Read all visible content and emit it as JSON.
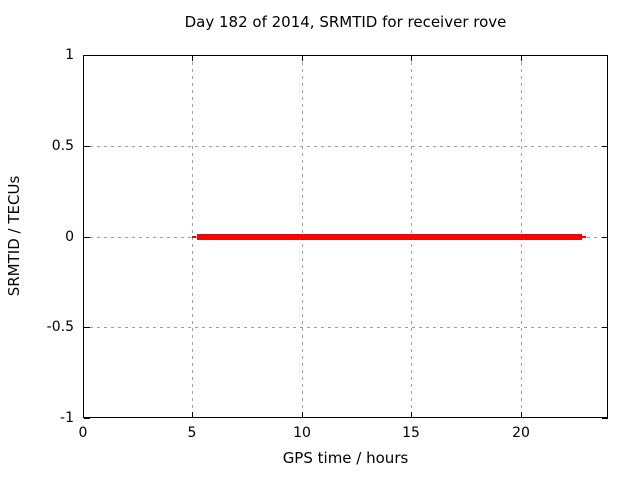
{
  "window": {
    "background": "#ffffff"
  },
  "chart_data": {
    "type": "line",
    "title": "Day 182 of 2014, SRMTID for receiver rove",
    "xlabel": "GPS time / hours",
    "ylabel": "SRMTID / TECUs",
    "xlim": [
      0,
      24
    ],
    "ylim": [
      -1,
      1
    ],
    "xticks": [
      {
        "value": 0,
        "label": "0"
      },
      {
        "value": 5,
        "label": "5"
      },
      {
        "value": 10,
        "label": "10"
      },
      {
        "value": 15,
        "label": "15"
      },
      {
        "value": 20,
        "label": "20"
      }
    ],
    "yticks": [
      {
        "value": 1,
        "label": "1"
      },
      {
        "value": 0.5,
        "label": "0.5"
      },
      {
        "value": 0,
        "label": "0"
      },
      {
        "value": -0.5,
        "label": "-0.5"
      },
      {
        "value": -1,
        "label": "-1"
      }
    ],
    "grid": true,
    "legend_position": "none",
    "series": [
      {
        "name": "SRMTID",
        "color": "#ff0000",
        "y_value": 0,
        "x_start": 5.0,
        "x_end": 23.0,
        "segments": [
          {
            "x_start": 5.0,
            "x_end": 5.2,
            "linewidth": 2
          },
          {
            "x_start": 5.2,
            "x_end": 22.8,
            "linewidth": 6
          },
          {
            "x_start": 22.8,
            "x_end": 23.0,
            "linewidth": 2
          }
        ]
      }
    ],
    "colors": {
      "grid": "#a0a0a0",
      "axis": "#000000",
      "text": "#000000",
      "background": "#ffffff"
    }
  }
}
